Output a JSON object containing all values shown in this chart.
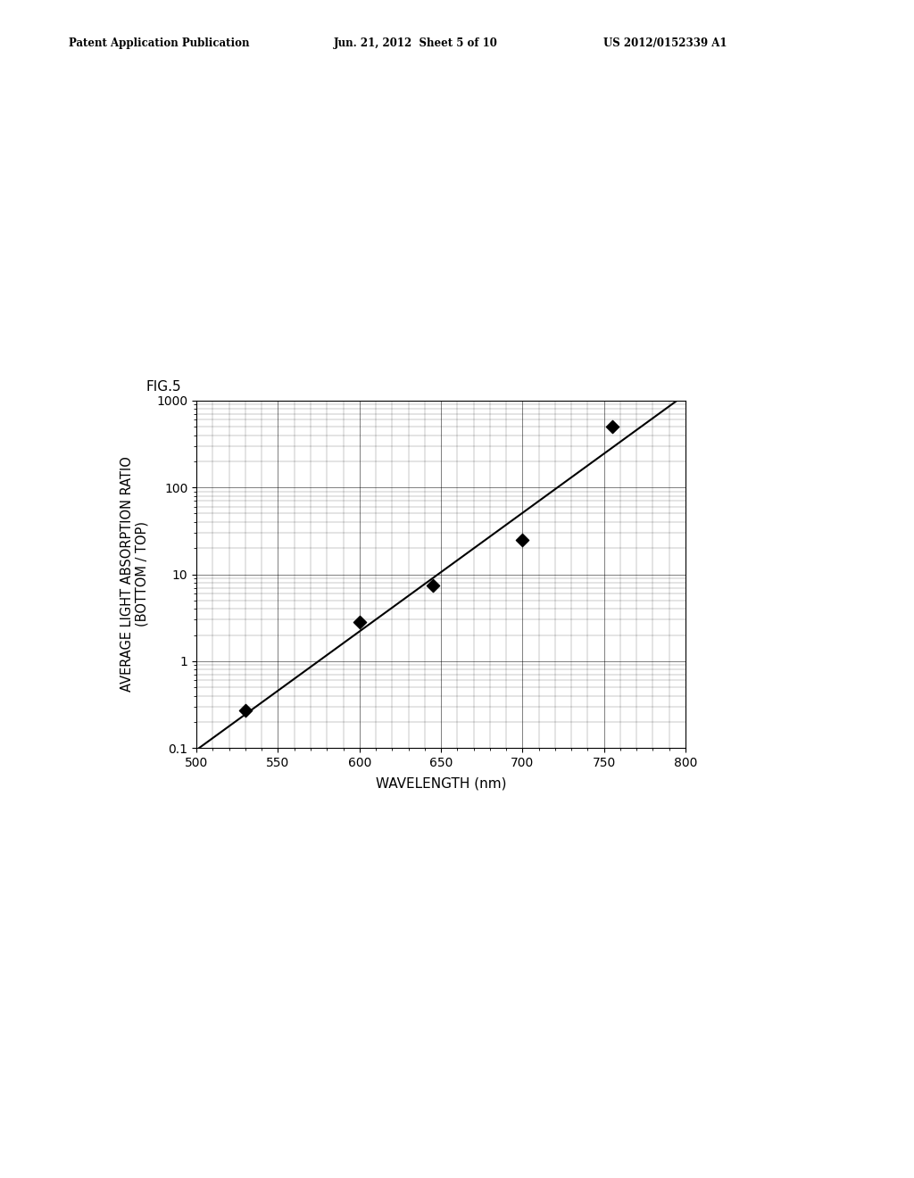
{
  "fig_label": "FIG.5",
  "header_left": "Patent Application Publication",
  "header_center": "Jun. 21, 2012  Sheet 5 of 10",
  "header_right": "US 2012/0152339 A1",
  "data_points_x": [
    530,
    600,
    645,
    700,
    755
  ],
  "data_points_y": [
    0.27,
    2.8,
    7.5,
    25,
    500
  ],
  "xlabel": "WAVELENGTH (nm)",
  "ylabel_line1": "AVERAGE LIGHT ABSORPTION RATIO",
  "ylabel_line2": "(BOTTOM / TOP)",
  "xlim": [
    500,
    800
  ],
  "ylim": [
    0.1,
    1000
  ],
  "xticks": [
    500,
    550,
    600,
    650,
    700,
    750,
    800
  ],
  "ytick_labels": [
    "0.1",
    "1",
    "10",
    "100",
    "1000"
  ],
  "ytick_values": [
    0.1,
    1,
    10,
    100,
    1000
  ],
  "background_color": "#ffffff",
  "grid_color": "#888888",
  "line_color": "#000000",
  "marker_color": "#000000",
  "marker_size": 9,
  "axis_fontsize": 10,
  "label_fontsize": 11,
  "fig_label_fontsize": 11,
  "header_fontsize": 8.5
}
